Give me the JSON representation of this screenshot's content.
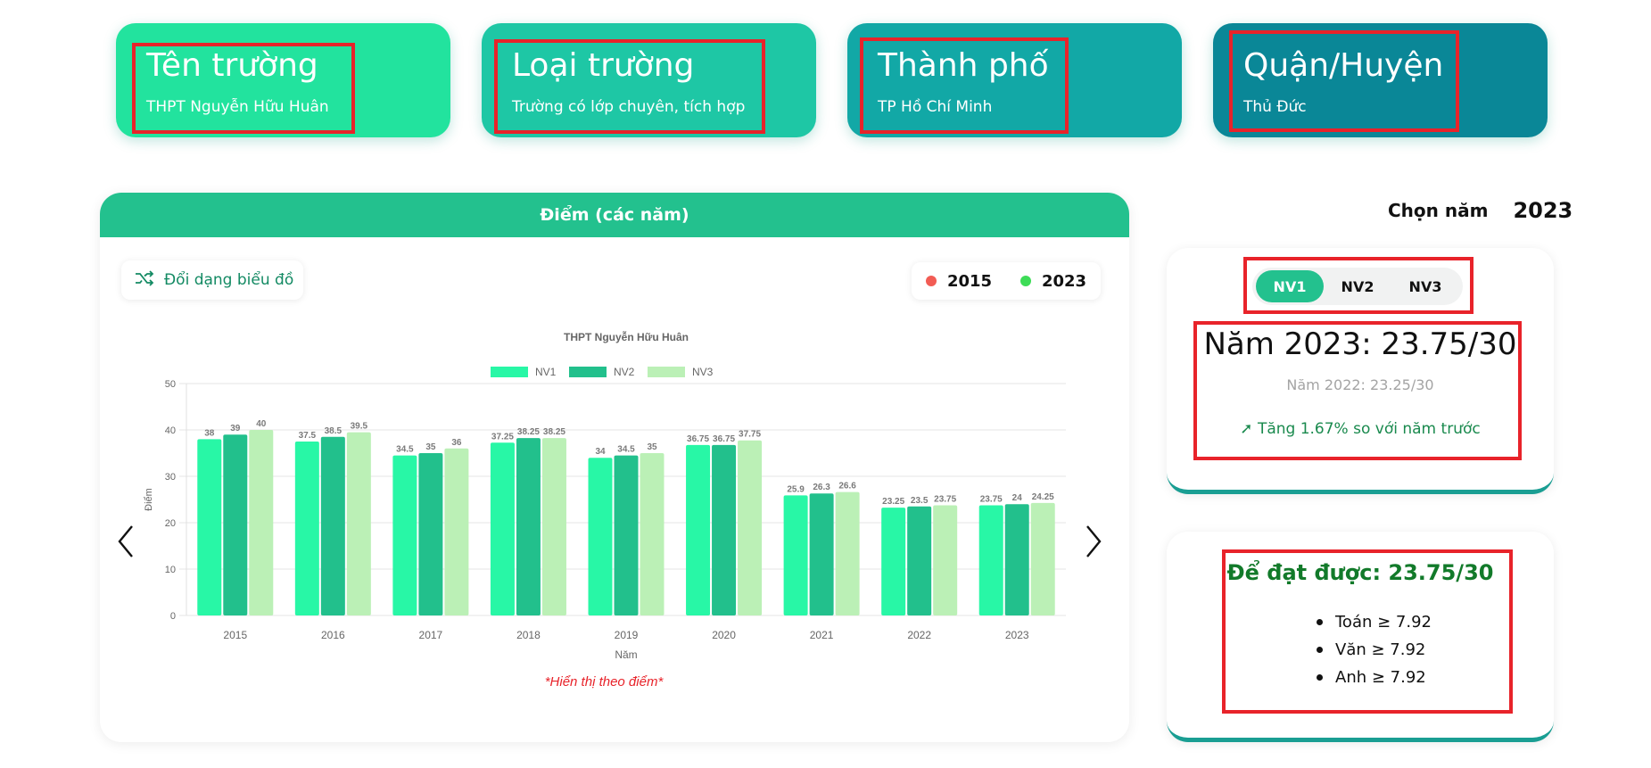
{
  "info_cards": [
    {
      "title": "Tên trường",
      "value": "THPT Nguyễn Hữu Huân",
      "color": "#22e39e"
    },
    {
      "title": "Loại trường",
      "value": "Trường có lớp chuyên, tích hợp",
      "color": "#1ec7a5"
    },
    {
      "title": "Thành phố",
      "value": "TP Hồ Chí Minh",
      "color": "#12a8a6"
    },
    {
      "title": "Quận/Huyện",
      "value": "Thủ Đức",
      "color": "#0a8797"
    }
  ],
  "chart_panel": {
    "header": "Điểm (các năm)",
    "switch_button": "Đổi dạng biểu đồ",
    "range_legend": [
      {
        "label": "2015",
        "color": "#f25c54"
      },
      {
        "label": "2023",
        "color": "#3ddc57"
      }
    ],
    "note": "*Hiển thị theo điểm*"
  },
  "chart_data": {
    "type": "bar",
    "title": "THPT Nguyễn Hữu Huân",
    "xlabel": "Năm",
    "ylabel": "Điểm",
    "ylim": [
      0,
      50
    ],
    "yticks": [
      0,
      10,
      20,
      30,
      40,
      50
    ],
    "grid": true,
    "legend_position": "top",
    "categories": [
      "2015",
      "2016",
      "2017",
      "2018",
      "2019",
      "2020",
      "2021",
      "2022",
      "2023"
    ],
    "series": [
      {
        "name": "NV1",
        "color": "#28f7a6",
        "values": [
          38,
          37.5,
          34.5,
          37.25,
          34,
          36.75,
          25.9,
          23.25,
          23.75
        ]
      },
      {
        "name": "NV2",
        "color": "#22c08c",
        "values": [
          39,
          38.5,
          35,
          38.25,
          34.5,
          36.75,
          26.3,
          23.5,
          24
        ]
      },
      {
        "name": "NV3",
        "color": "#bbf0b6",
        "values": [
          40,
          39.5,
          36,
          38.25,
          35,
          37.75,
          26.6,
          23.75,
          24.25
        ]
      }
    ]
  },
  "year_select": {
    "label": "Chọn năm",
    "value": "2023"
  },
  "score_card": {
    "tabs": [
      "NV1",
      "NV2",
      "NV3"
    ],
    "active_tab": "NV1",
    "main_score": "Năm 2023: 23.75/30",
    "prev_score": "Năm 2022: 23.25/30",
    "trend": "Tăng 1.67% so với năm trước"
  },
  "target_card": {
    "title": "Để đạt được: 23.75/30",
    "items": [
      "Toán ≥ 7.92",
      "Văn ≥ 7.92",
      "Anh ≥ 7.92"
    ]
  }
}
